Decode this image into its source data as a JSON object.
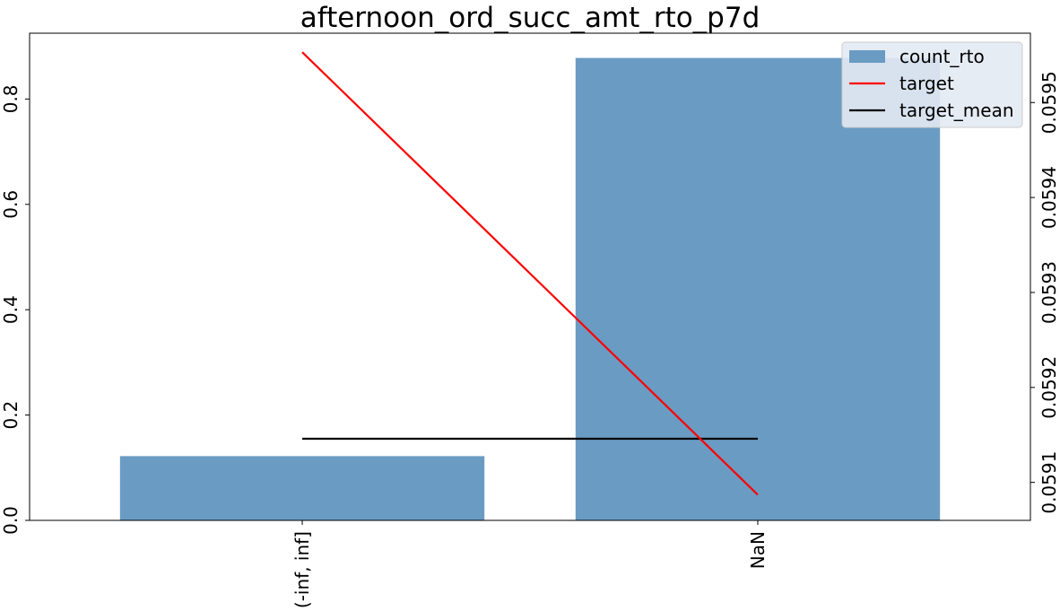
{
  "chart_data": {
    "type": "bar",
    "title": "afternoon_ord_succ_amt_rto_p7d",
    "categories": [
      "(-inf, inf]",
      "NaN"
    ],
    "series": [
      {
        "name": "count_rto",
        "axis": "left",
        "kind": "bar",
        "values": [
          0.122,
          0.878
        ]
      },
      {
        "name": "target",
        "axis": "right",
        "kind": "line",
        "values": [
          0.059553,
          0.059087
        ]
      },
      {
        "name": "target_mean",
        "axis": "right",
        "kind": "line",
        "values": [
          0.059146,
          0.059146
        ]
      }
    ],
    "left_axis": {
      "ylim": [
        0,
        0.925
      ],
      "ticks": [
        0.0,
        0.2,
        0.4,
        0.6,
        0.8
      ],
      "tick_labels": [
        "0.0",
        "0.2",
        "0.4",
        "0.6",
        "0.8"
      ]
    },
    "right_axis": {
      "ylim": [
        0.05906,
        0.059573
      ],
      "ticks": [
        0.0591,
        0.0592,
        0.0593,
        0.0594,
        0.0595
      ],
      "tick_labels": [
        "0.0591",
        "0.0592",
        "0.0593",
        "0.0594",
        "0.0595"
      ]
    },
    "legend": {
      "position": "top-right",
      "entries": [
        "count_rto",
        "target",
        "target_mean"
      ]
    },
    "colors": {
      "bar": "#6a9bc3",
      "target": "#ff0000",
      "target_mean": "#000000",
      "legend_bg": "#e3eaf3"
    },
    "xlabel": "",
    "ylabel": "",
    "grid": false
  }
}
